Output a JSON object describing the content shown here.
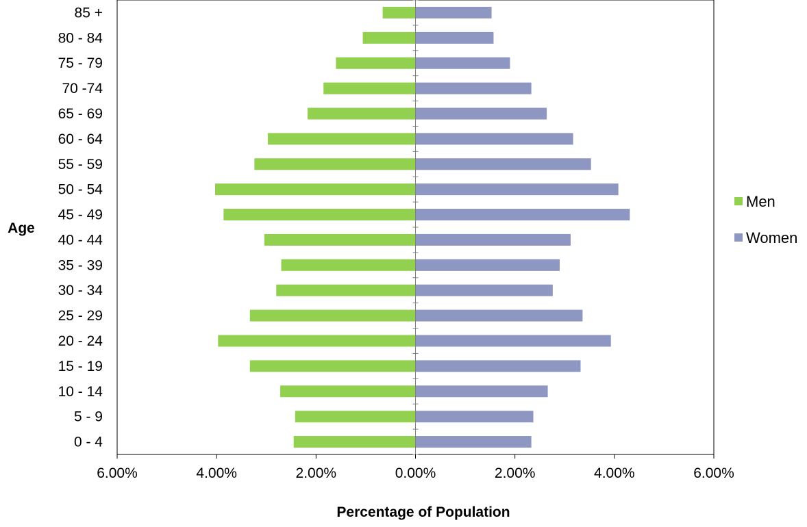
{
  "chart_data": {
    "type": "bar",
    "orientation": "horizontal",
    "layout": "population-pyramid",
    "categories": [
      "0 - 4",
      "5 - 9",
      "10 - 14",
      "15 - 19",
      "20 - 24",
      "25 - 29",
      "30 - 34",
      "35 - 39",
      "40 - 44",
      "45 - 49",
      "50 - 54",
      "55 - 59",
      "60 - 64",
      "65 - 69",
      "70 -74",
      "75 - 79",
      "80 - 84",
      "85 +"
    ],
    "series": [
      {
        "name": "Men",
        "color": "#92D050",
        "side": "left",
        "values": [
          2.45,
          2.42,
          2.72,
          3.33,
          3.97,
          3.33,
          2.8,
          2.7,
          3.04,
          3.86,
          4.03,
          3.24,
          2.97,
          2.17,
          1.85,
          1.6,
          1.06,
          0.66
        ]
      },
      {
        "name": "Women",
        "color": "#8E96C2",
        "side": "right",
        "values": [
          2.33,
          2.37,
          2.66,
          3.32,
          3.93,
          3.36,
          2.76,
          2.9,
          3.12,
          4.31,
          4.08,
          3.53,
          3.17,
          2.64,
          2.33,
          1.9,
          1.57,
          1.53
        ]
      }
    ],
    "xlim": [
      -6,
      6
    ],
    "x_ticks": [
      -6,
      -4,
      -2,
      0,
      2,
      4,
      6
    ],
    "x_tick_labels": [
      "6.00%",
      "4.00%",
      "2.00%",
      "0.00%",
      "2.00%",
      "4.00%",
      "6.00%"
    ],
    "xlabel": "Percentage of Population",
    "ylabel": "Age",
    "title": "",
    "grid": false,
    "legend_position": "right"
  }
}
